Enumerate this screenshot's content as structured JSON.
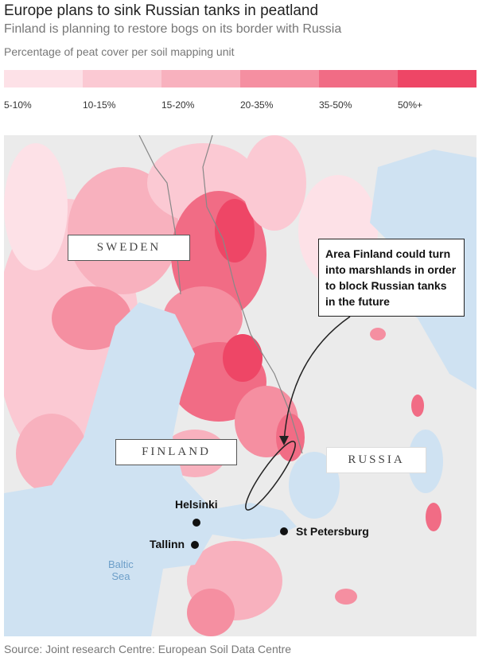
{
  "header": {
    "title": "Europe plans to sink Russian tanks in peatland",
    "subtitle": "Finland is planning to restore bogs on its border with Russia",
    "legend_title": "Percentage of peat cover per soil mapping unit"
  },
  "legend": [
    {
      "label": "5-10%",
      "color": "#fde1e7"
    },
    {
      "label": "10-15%",
      "color": "#fbc9d3"
    },
    {
      "label": "15-20%",
      "color": "#f8b1be"
    },
    {
      "label": "20-35%",
      "color": "#f58fa1"
    },
    {
      "label": "35-50%",
      "color": "#f16c85"
    },
    {
      "label": "50%+",
      "color": "#ee4666"
    }
  ],
  "map": {
    "countries": [
      "SWEDEN",
      "FINLAND",
      "RUSSIA"
    ],
    "cities": [
      "Helsinki",
      "Tallinn",
      "St Petersburg"
    ],
    "sea": [
      "Baltic",
      "Sea"
    ],
    "annotation": "Area Finland could turn into marshlands in order to block Russian tanks in the future"
  },
  "source": "Source: Joint research Centre: European Soil Data Centre"
}
